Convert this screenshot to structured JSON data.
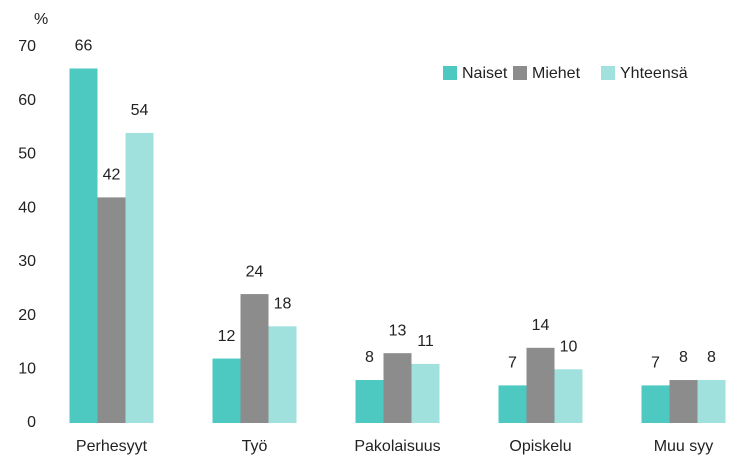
{
  "chart_data": {
    "type": "bar",
    "y_label": "%",
    "categories": [
      "Perhesyyt",
      "Työ",
      "Pakolaisuus",
      "Opiskelu",
      "Muu syy"
    ],
    "series": [
      {
        "name": "Naiset",
        "color": "#4ec9c2",
        "values": [
          66,
          12,
          8,
          7,
          7
        ]
      },
      {
        "name": "Miehet",
        "color": "#8c8c8c",
        "values": [
          42,
          24,
          13,
          14,
          8
        ]
      },
      {
        "name": "Yhteensä",
        "color": "#a0e1dd",
        "values": [
          54,
          18,
          11,
          10,
          8
        ]
      }
    ],
    "ylim": [
      0,
      70
    ],
    "yticks": [
      0,
      10,
      20,
      30,
      40,
      50,
      60,
      70
    ],
    "grid": false,
    "legend": "top-right",
    "data_labels": true
  }
}
